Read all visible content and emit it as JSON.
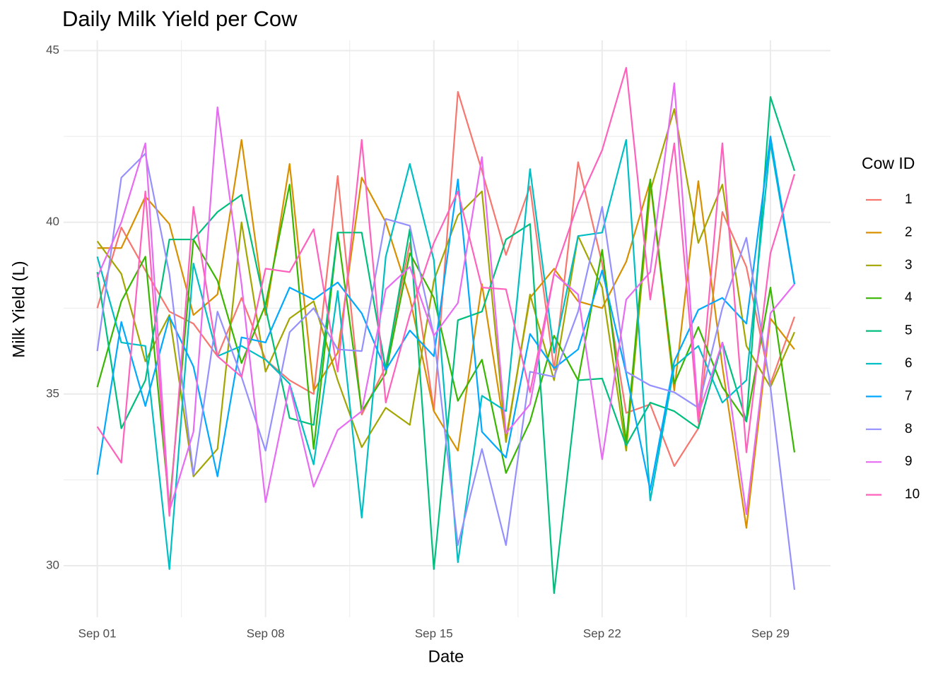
{
  "chart_data": {
    "type": "line",
    "title": "Daily Milk Yield per Cow",
    "x_label": "Date",
    "y_label": "Milk Yield (L)",
    "legend_title": "Cow ID",
    "legend_position": "right",
    "grid": true,
    "x": [
      1,
      2,
      3,
      4,
      5,
      6,
      7,
      8,
      9,
      10,
      11,
      12,
      13,
      14,
      15,
      16,
      17,
      18,
      19,
      20,
      21,
      22,
      23,
      24,
      25,
      26,
      27,
      28,
      29,
      30
    ],
    "xlim": [
      -0.4,
      31.5
    ],
    "xticks": [
      {
        "value": 1,
        "label": "Sep 01"
      },
      {
        "value": 8,
        "label": "Sep 08"
      },
      {
        "value": 15,
        "label": "Sep 15"
      },
      {
        "value": 22,
        "label": "Sep 22"
      },
      {
        "value": 29,
        "label": "Sep 29"
      }
    ],
    "ylim": [
      28.5,
      45.3
    ],
    "yticks": [
      30,
      35,
      40,
      45
    ],
    "series": [
      {
        "name": "1",
        "color": "#F8766D",
        "values": [
          37.5,
          39.85,
          38.6,
          37.4,
          37.05,
          36.1,
          37.8,
          36.0,
          35.4,
          35.0,
          41.35,
          34.4,
          35.8,
          39.4,
          34.5,
          43.8,
          41.5,
          39.05,
          41.05,
          35.7,
          41.75,
          38.8,
          34.45,
          34.7,
          32.9,
          34.0,
          40.3,
          38.7,
          35.3,
          37.25
        ]
      },
      {
        "name": "2",
        "color": "#D89000",
        "values": [
          39.25,
          39.25,
          40.75,
          39.95,
          37.3,
          37.9,
          42.4,
          37.3,
          41.7,
          35.1,
          36.2,
          41.3,
          40.0,
          37.8,
          34.5,
          33.35,
          38.2,
          33.7,
          37.8,
          38.65,
          37.7,
          37.5,
          38.85,
          41.2,
          35.1,
          41.2,
          35.8,
          31.1,
          37.2,
          36.3
        ]
      },
      {
        "name": "3",
        "color": "#A3A500",
        "values": [
          39.45,
          38.5,
          35.95,
          37.3,
          32.6,
          33.4,
          40.0,
          35.65,
          37.2,
          37.7,
          35.4,
          33.45,
          34.6,
          34.1,
          38.3,
          40.2,
          40.9,
          33.6,
          37.9,
          35.4,
          39.6,
          38.1,
          33.35,
          40.9,
          43.3,
          39.4,
          41.1,
          36.4,
          35.2,
          36.8
        ]
      },
      {
        "name": "4",
        "color": "#39B600",
        "values": [
          35.2,
          37.7,
          39.0,
          31.7,
          39.5,
          38.3,
          35.9,
          37.6,
          41.1,
          33.4,
          39.7,
          34.5,
          35.6,
          39.1,
          37.8,
          34.8,
          36.0,
          32.7,
          34.2,
          36.7,
          35.4,
          39.2,
          33.6,
          41.25,
          35.3,
          36.95,
          35.2,
          34.2,
          38.1,
          33.3
        ]
      },
      {
        "name": "5",
        "color": "#00BF7D",
        "values": [
          38.55,
          34.0,
          35.4,
          39.5,
          39.5,
          40.3,
          40.8,
          37.5,
          34.3,
          34.1,
          39.7,
          39.7,
          35.7,
          39.8,
          29.9,
          37.15,
          37.4,
          39.5,
          39.95,
          29.2,
          35.4,
          35.45,
          33.5,
          34.75,
          34.5,
          34.0,
          36.5,
          34.2,
          43.65,
          41.5
        ]
      },
      {
        "name": "6",
        "color": "#00BFC4",
        "values": [
          39.0,
          36.5,
          36.4,
          29.9,
          38.8,
          36.1,
          36.4,
          36.0,
          35.3,
          32.95,
          38.0,
          31.4,
          39.0,
          41.7,
          38.9,
          30.1,
          34.95,
          34.5,
          41.55,
          36.2,
          39.6,
          39.7,
          42.4,
          31.9,
          35.8,
          36.4,
          34.75,
          35.4,
          42.3,
          38.2
        ]
      },
      {
        "name": "7",
        "color": "#00A9FF",
        "values": [
          32.65,
          37.1,
          34.65,
          37.25,
          35.8,
          32.6,
          36.65,
          36.5,
          38.1,
          37.75,
          38.25,
          37.35,
          35.7,
          36.85,
          36.1,
          41.25,
          33.9,
          33.15,
          36.75,
          35.75,
          36.3,
          38.6,
          35.6,
          32.2,
          35.95,
          37.45,
          37.8,
          37.05,
          42.5,
          38.2
        ]
      },
      {
        "name": "8",
        "color": "#9590FF",
        "values": [
          36.25,
          41.3,
          42.0,
          38.5,
          32.65,
          37.4,
          35.5,
          33.35,
          36.8,
          37.5,
          36.3,
          36.25,
          40.1,
          39.9,
          36.7,
          30.6,
          33.4,
          30.6,
          35.65,
          35.5,
          37.4,
          40.45,
          35.65,
          35.25,
          35.05,
          34.6,
          37.5,
          39.55,
          35.2,
          29.3
        ]
      },
      {
        "name": "9",
        "color": "#E76BF3",
        "values": [
          38.4,
          40.0,
          42.3,
          31.6,
          33.9,
          43.35,
          38.2,
          31.85,
          35.25,
          32.3,
          33.95,
          34.5,
          38.05,
          38.7,
          36.7,
          37.65,
          41.9,
          33.85,
          34.7,
          38.5,
          37.9,
          33.1,
          37.75,
          38.55,
          44.05,
          34.4,
          36.5,
          31.5,
          37.35,
          38.2
        ]
      },
      {
        "name": "10",
        "color": "#FF62BC",
        "values": [
          34.05,
          33.0,
          40.9,
          31.45,
          40.45,
          36.1,
          35.5,
          38.65,
          38.55,
          39.8,
          35.65,
          42.4,
          34.75,
          37.3,
          39.4,
          40.9,
          38.1,
          38.05,
          35.05,
          38.5,
          40.55,
          42.1,
          44.5,
          37.75,
          42.3,
          34.2,
          42.3,
          33.3,
          39.1,
          41.4
        ]
      }
    ]
  }
}
